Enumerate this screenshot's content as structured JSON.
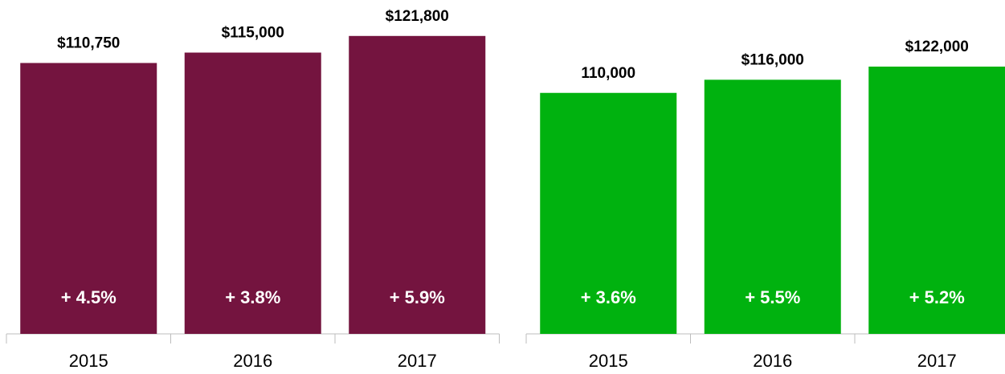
{
  "chart_data": [
    {
      "type": "bar",
      "categories": [
        "2015",
        "2016",
        "2017"
      ],
      "values": [
        110750,
        115000,
        121800
      ],
      "value_labels": [
        "$110,750",
        "$115,000",
        "$121,800"
      ],
      "annotations": [
        "+ 4.5%",
        "+ 3.8%",
        "+ 5.9%"
      ],
      "color": "#74143f",
      "ylim": [
        0,
        136500
      ]
    },
    {
      "type": "bar",
      "categories": [
        "2015",
        "2016",
        "2017"
      ],
      "values": [
        110000,
        116000,
        122000
      ],
      "value_labels": [
        "110,000",
        "$116,000",
        "$122,000"
      ],
      "annotations": [
        "+ 3.6%",
        "+ 5.5%",
        "+ 5.2%"
      ],
      "color": "#00b20f",
      "ylim": [
        0,
        152400
      ]
    }
  ]
}
